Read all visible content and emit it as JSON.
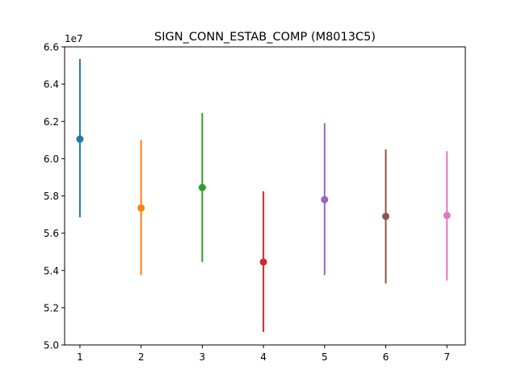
{
  "chart_data": {
    "type": "scatter",
    "title": "SIGN_CONN_ESTAB_COMP (M8013C5)",
    "xlabel": "",
    "ylabel": "",
    "y_offset_label": "1e7",
    "xlim": [
      0.75,
      7.3
    ],
    "ylim": [
      5.0,
      6.6
    ],
    "x_ticks": [
      1,
      2,
      3,
      4,
      5,
      6,
      7
    ],
    "x_tick_labels": [
      "1",
      "2",
      "3",
      "4",
      "5",
      "6",
      "7"
    ],
    "y_ticks": [
      5.0,
      5.2,
      5.4,
      5.6,
      5.8,
      6.0,
      6.2,
      6.4,
      6.6
    ],
    "y_tick_labels": [
      "5.0",
      "5.2",
      "5.4",
      "5.6",
      "5.8",
      "6.0",
      "6.2",
      "6.4",
      "6.6"
    ],
    "grid": false,
    "series": [
      {
        "x": 1,
        "y": 6.105,
        "err_low": 5.685,
        "err_high": 6.535,
        "color": "#1f77b4"
      },
      {
        "x": 2,
        "y": 5.735,
        "err_low": 5.375,
        "err_high": 6.1,
        "color": "#ff7f0e"
      },
      {
        "x": 3,
        "y": 5.845,
        "err_low": 5.445,
        "err_high": 6.245,
        "color": "#2ca02c"
      },
      {
        "x": 4,
        "y": 5.445,
        "err_low": 5.07,
        "err_high": 5.825,
        "color": "#d62728"
      },
      {
        "x": 5,
        "y": 5.78,
        "err_low": 5.375,
        "err_high": 6.19,
        "color": "#9467bd"
      },
      {
        "x": 6,
        "y": 5.69,
        "err_low": 5.33,
        "err_high": 6.05,
        "color": "#8c564b"
      },
      {
        "x": 7,
        "y": 5.695,
        "err_low": 5.345,
        "err_high": 6.04,
        "color": "#e377c2"
      }
    ]
  }
}
